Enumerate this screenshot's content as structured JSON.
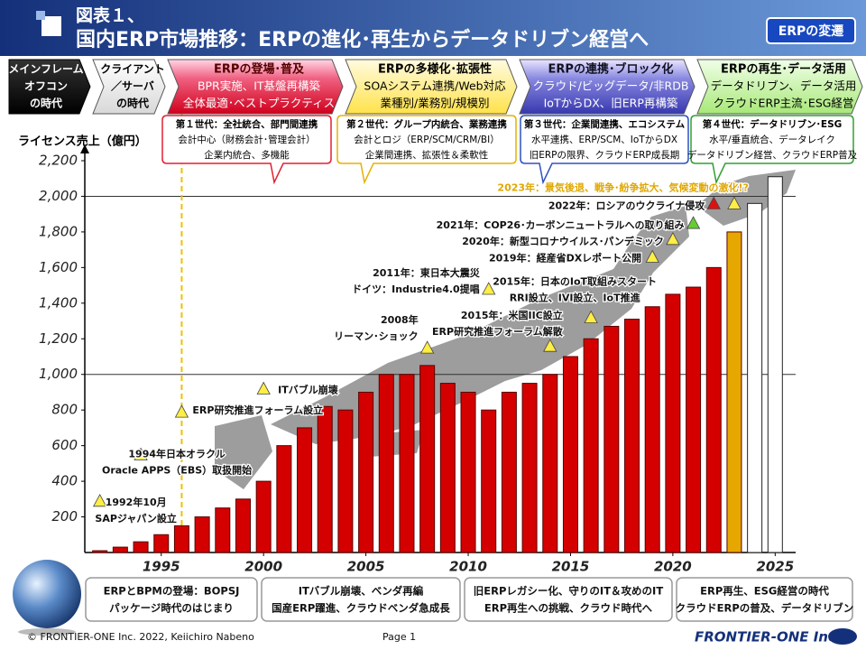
{
  "header": {
    "label": "図表１、",
    "title": "国内ERP市場推移：ERPの進化･再生からデータドリブン経営へ",
    "badge": "ERPの変遷"
  },
  "phases": [
    [
      "メインフレーム",
      "オフコン",
      "の時代"
    ],
    [
      "クライアント",
      "／サーバ",
      "の時代"
    ],
    [
      "ERPの登場･普及",
      "BPR実施、IT基盤再構築",
      "全体最適･ベストプラクティス"
    ],
    [
      "ERPの多様化･拡張性",
      "SOAシステム連携/Web対応",
      "業種別/業務別/規模別"
    ],
    [
      "ERPの連携･ブロック化",
      "クラウド/ビッグデータ/非RDB",
      "IoTからDX、旧ERP再構築"
    ],
    [
      "ERPの再生･データ活用",
      "データドリブン、データ活用",
      "クラウドERP主流･ESG経営"
    ]
  ],
  "generations": [
    [
      "第１世代：全社統合、部門間連携",
      "会計中心（財務会計･管理会計）",
      "企業内統合、多機能"
    ],
    [
      "第２世代：グループ内統合、業務連携",
      "会計とロジ（ERP/SCM/CRM/BI）",
      "企業間連携、拡張性＆柔軟性"
    ],
    [
      "第３世代：企業間連携、エコシステム",
      "水平連携、ERP/SCM、IoTからDX",
      "旧ERPの限界、クラウドERP成長期"
    ],
    [
      "第４世代：データドリブン･ESG",
      "水平/垂直統合、データレイク",
      "データドリブン経営、クラウドERP普及"
    ]
  ],
  "chart_data": {
    "type": "bar",
    "y_label": "ライセンス売上（億円）",
    "x": [
      1992,
      1993,
      1994,
      1995,
      1996,
      1997,
      1998,
      1999,
      2000,
      2001,
      2002,
      2003,
      2004,
      2005,
      2006,
      2007,
      2008,
      2009,
      2010,
      2011,
      2012,
      2013,
      2014,
      2015,
      2016,
      2017,
      2018,
      2019,
      2020,
      2021,
      2022,
      2023,
      2024,
      2025
    ],
    "values": [
      10,
      30,
      60,
      100,
      150,
      200,
      250,
      300,
      400,
      600,
      700,
      820,
      800,
      900,
      1000,
      1000,
      1050,
      950,
      900,
      800,
      900,
      950,
      1000,
      1100,
      1200,
      1270,
      1310,
      1380,
      1450,
      1490,
      1600,
      1800,
      1960,
      2110
    ],
    "colors": [
      "#d40000",
      "#d40000",
      "#d40000",
      "#d40000",
      "#d40000",
      "#d40000",
      "#d40000",
      "#d40000",
      "#d40000",
      "#d40000",
      "#d40000",
      "#d40000",
      "#d40000",
      "#d40000",
      "#d40000",
      "#d40000",
      "#d40000",
      "#d40000",
      "#d40000",
      "#d40000",
      "#d40000",
      "#d40000",
      "#d40000",
      "#d40000",
      "#d40000",
      "#d40000",
      "#d40000",
      "#d40000",
      "#d40000",
      "#d40000",
      "#d40000",
      "#e6a800",
      "#ffffff",
      "#ffffff"
    ],
    "xlim": [
      1991,
      2026
    ],
    "ylim": [
      0,
      2200
    ],
    "xticks": [
      1995,
      2000,
      2005,
      2010,
      2015,
      2020,
      2025
    ],
    "yticks": [
      200,
      400,
      600,
      800,
      {
        "value": 1000,
        "label": "1,000"
      },
      {
        "value": 1200,
        "label": "1,200"
      },
      {
        "value": 1400,
        "label": "1,400"
      },
      {
        "value": 1600,
        "label": "1,600"
      },
      {
        "value": 1800,
        "label": "1,800"
      },
      {
        "value": 2000,
        "label": "2,000"
      },
      {
        "value": 2200,
        "label": "2,200"
      }
    ],
    "gridlines": [
      1000,
      2000
    ],
    "marker_line": 1996,
    "annotations": [
      {
        "text": [
          "1992年10月",
          "SAPジャパン設立"
        ],
        "x": 1992,
        "y": 290,
        "color": "#ffee44"
      },
      {
        "text": [
          "1994年日本オラクル",
          "Oracle APPS（EBS）取扱開始"
        ],
        "x": 1994,
        "y": 550,
        "color": "#ffee44"
      },
      {
        "text": [
          "ERP研究推進フォーラム設立"
        ],
        "x": 1996,
        "y": 790,
        "color": "#ffee44"
      },
      {
        "text": [
          "ITバブル崩壊"
        ],
        "x": 2000,
        "y": 920,
        "color": "#ffee44"
      },
      {
        "text": [
          "2008年",
          "リーマン･ショック"
        ],
        "x": 2008,
        "y": 1150,
        "color": "#ffee44"
      },
      {
        "text": [
          "2011年：東日本大震災",
          "ドイツ：Industrie4.0提唱"
        ],
        "x": 2011,
        "y": 1480,
        "color": "#ffee44"
      },
      {
        "text": [
          "2015年：米国IIC設立",
          "ERP研究推進フォーラム解散"
        ],
        "x": 2014,
        "y": 1160,
        "color": "#ffee44"
      },
      {
        "text": [
          "2015年：日本のIoT取組みスタート",
          "RRI設立、IVI設立、IoT推進"
        ],
        "x": 2016,
        "y": 1320,
        "color": "#ffee44"
      },
      {
        "text": [
          "2019年：経産省DXレポート公開"
        ],
        "x": 2019,
        "y": 1660,
        "color": "#ffee44"
      },
      {
        "text": [
          "2020年：新型コロナウイルス･パンデミック"
        ],
        "x": 2020,
        "y": 1760,
        "color": "#ffee44"
      },
      {
        "text": [
          "2021年：COP26･カーボンニュートラルへの取り組み"
        ],
        "x": 2021,
        "y": 1850,
        "color": "#66cc33"
      },
      {
        "text": [
          "2022年：ロシアのウクライナ侵攻"
        ],
        "x": 2022,
        "y": 1960,
        "color": "#dd1111"
      },
      {
        "text": [
          "2023年：景気後退、戦争･紛争拡大、気候変動の激化!?"
        ],
        "x": 2023,
        "y": 1960,
        "color": "#ffee44"
      }
    ]
  },
  "bottom_notes": [
    [
      "ERPとBPMの登場：BOPSJ",
      "パッケージ時代のはじまり"
    ],
    [
      "ITバブル崩壊、ベンダ再編",
      "国産ERP躍進、クラウドベンダ急成長"
    ],
    [
      "旧ERPレガシー化、守りのIT＆攻めのIT",
      "ERP再生への挑戦、クラウド時代へ"
    ],
    [
      "ERP再生、ESG経営の時代",
      "クラウドERPの普及、データドリブン"
    ]
  ],
  "footer": {
    "copyright": "© FRONTIER-ONE Inc. 2022,  Keiichiro  Nabeno",
    "page": "Page 1",
    "logo": "FRONTIER-ONE Inc."
  }
}
